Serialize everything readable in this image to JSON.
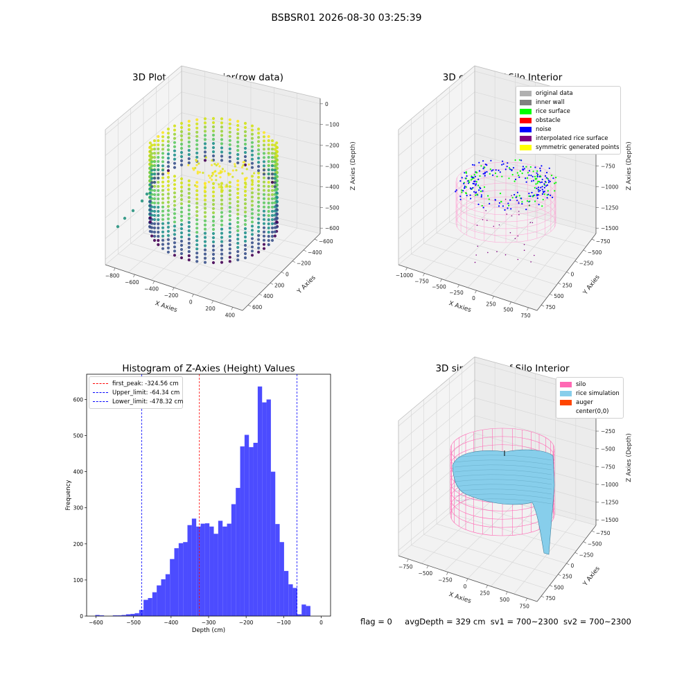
{
  "figure": {
    "title": "BSBSR01 2026-08-30 03:25:39",
    "footer": {
      "flag": "flag = 0",
      "avg": "avgDepth = 329 cm",
      "sv1": "sv1 = 700~2300",
      "sv2": "sv2 = 700~2300"
    }
  },
  "colors": {
    "original data": "#b0b0b0",
    "inner wall": "#808080",
    "rice surface": "#00ff00",
    "obstacle": "#ff0000",
    "noise": "#0000ff",
    "interpolated rice surface": "#800080",
    "symmetric generated points": "#ffff00",
    "silo": "#ff69b4",
    "rice simulation": "#87ceeb",
    "auger": "#ff4500",
    "hist_bar": "#4c4cff"
  },
  "chart_data": [
    {
      "type": "scatter",
      "title": "3D Plot of Silo Interior(row data)",
      "xlabel": "X Axies",
      "ylabel": "Y Axies",
      "zlabel": "Z Axies (Depth)",
      "xticks": [
        "−800",
        "−600",
        "−400",
        "−200",
        "0",
        "200",
        "400"
      ],
      "yticks": [
        "−600",
        "−400",
        "−200",
        "0",
        "200",
        "400",
        "600"
      ],
      "zticks": [
        "0",
        "−100",
        "−200",
        "−300",
        "−400",
        "−500",
        "−600"
      ]
    },
    {
      "type": "scatter",
      "title": "3D classify of Silo Interior",
      "xlabel": "X Axies",
      "ylabel": "Y Axies",
      "zlabel": "Z Axies (Depth)",
      "xticks": [
        "−1000",
        "−750",
        "−500",
        "−250",
        "0",
        "250",
        "500",
        "750"
      ],
      "yticks": [
        "−750",
        "−500",
        "−250",
        "0",
        "250",
        "500",
        "750"
      ],
      "zticks": [
        "0",
        "−250",
        "−500",
        "−750",
        "−1000",
        "−1250",
        "−1500"
      ],
      "legend": [
        "original data",
        "inner wall",
        "rice surface",
        "obstacle",
        "noise",
        "interpolated rice surface",
        "symmetric generated points"
      ]
    },
    {
      "type": "bar",
      "title": "Histogram of Z-Axies (Height) Values",
      "xlabel": "Depth (cm)",
      "ylabel": "Frequency",
      "xlim": [
        -625,
        25
      ],
      "ylim": [
        0,
        670
      ],
      "xticks": [
        -600,
        -500,
        -400,
        -300,
        -200,
        -100,
        0
      ],
      "xtick_labels": [
        "−600",
        "−500",
        "−400",
        "−300",
        "−200",
        "−100",
        "0"
      ],
      "yticks": [
        0,
        100,
        200,
        300,
        400,
        500,
        600
      ],
      "bin_start": -602,
      "bin_width": 11.7,
      "values": [
        3,
        2,
        0,
        0,
        2,
        2,
        3,
        5,
        6,
        8,
        17,
        45,
        50,
        66,
        85,
        102,
        116,
        158,
        188,
        202,
        205,
        252,
        270,
        248,
        256,
        257,
        248,
        228,
        264,
        248,
        256,
        310,
        355,
        470,
        502,
        468,
        480,
        636,
        592,
        600,
        400,
        255,
        205,
        125,
        88,
        78,
        5,
        32,
        28
      ],
      "vlines": [
        {
          "label": "first_peak: -324.56 cm",
          "x": -324.56,
          "color": "#ff0000"
        },
        {
          "label": "Upper_limit: -64.34 cm",
          "x": -64.34,
          "color": "#0000ff"
        },
        {
          "label": "Lower_limit: -478.32 cm",
          "x": -478.32,
          "color": "#0000ff"
        }
      ]
    },
    {
      "type": "area",
      "title": "3D simulation of Silo Interior",
      "xlabel": "X Axies",
      "ylabel": "Y Axies",
      "zlabel": "Z Axies (Depth)",
      "xticks": [
        "−750",
        "−500",
        "−250",
        "0",
        "250",
        "500",
        "750"
      ],
      "yticks": [
        "−750",
        "−500",
        "−250",
        "0",
        "250",
        "500",
        "750"
      ],
      "zticks": [
        "250",
        "0",
        "−250",
        "−500",
        "−750",
        "−1000",
        "−1250",
        "−1500"
      ],
      "legend": [
        "silo",
        "rice simulation",
        "auger",
        "center(0,0)"
      ]
    }
  ]
}
